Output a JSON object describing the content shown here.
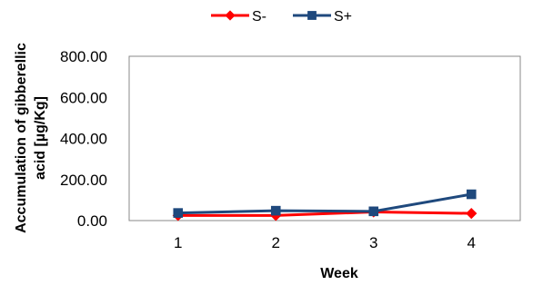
{
  "chart_data": {
    "type": "line",
    "title": "",
    "xlabel": "Week",
    "ylabel": [
      "Accumulation of gibberellic",
      "acid [µg/Kg]"
    ],
    "x": [
      "1",
      "2",
      "3",
      "4"
    ],
    "ylim": [
      0,
      800
    ],
    "yticks": [
      "0.00",
      "200.00",
      "400.00",
      "600.00",
      "800.00"
    ],
    "ytick_values": [
      0,
      200,
      400,
      600,
      800
    ],
    "grid": false,
    "legend": "top",
    "series": [
      {
        "name": "S-",
        "marker": "diamond",
        "color": "#ff0000",
        "values": [
          25,
          25,
          42,
          35
        ]
      },
      {
        "name": "S+",
        "marker": "square",
        "color": "#1f497d",
        "values": [
          37,
          48,
          45,
          128
        ]
      }
    ]
  }
}
